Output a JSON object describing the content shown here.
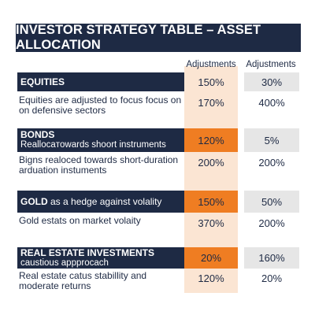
{
  "title": "INVESTOR STRATEGY TABLE – ASSET ALLOCATION",
  "column_headers": [
    "Adjustments",
    "Adjustments"
  ],
  "colors": {
    "navy": "#1e2a44",
    "orange": "#ef7d22",
    "peach": "#fbe5d3",
    "gray": "#e6e6e6"
  },
  "rows": [
    {
      "category": "EQUITIES",
      "category_suffix": "",
      "category_sub": "",
      "cat_v1": "150%",
      "cat_v2": "30%",
      "detail": "Equities are adjusted to focus focus on on defensive sectors",
      "detail_v1": "170%",
      "detail_v2": "400%"
    },
    {
      "category": "BONDS",
      "category_suffix": "",
      "category_sub": "Reallocaтowards shoort instruments",
      "cat_v1": "120%",
      "cat_v2": "5%",
      "detail": "Bigns realoced towards short-duration arduation instuments",
      "detail_v1": "200%",
      "detail_v2": "200%"
    },
    {
      "category": "GOLD",
      "category_suffix": " as a hedge against volality",
      "category_sub": "",
      "cat_v1": "150%",
      "cat_v2": "50%",
      "detail": "Gold estats on market volaity",
      "detail_v1": "370%",
      "detail_v2": "200%"
    },
    {
      "category": "REAL ESTATE INVESTMENTS",
      "category_suffix": "",
      "category_sub": "caustious appprocach",
      "cat_v1": "20%",
      "cat_v2": "160%",
      "detail": "Real estate catus stabillity and moderate returns",
      "detail_v1": "120%",
      "detail_v2": "20%"
    }
  ]
}
